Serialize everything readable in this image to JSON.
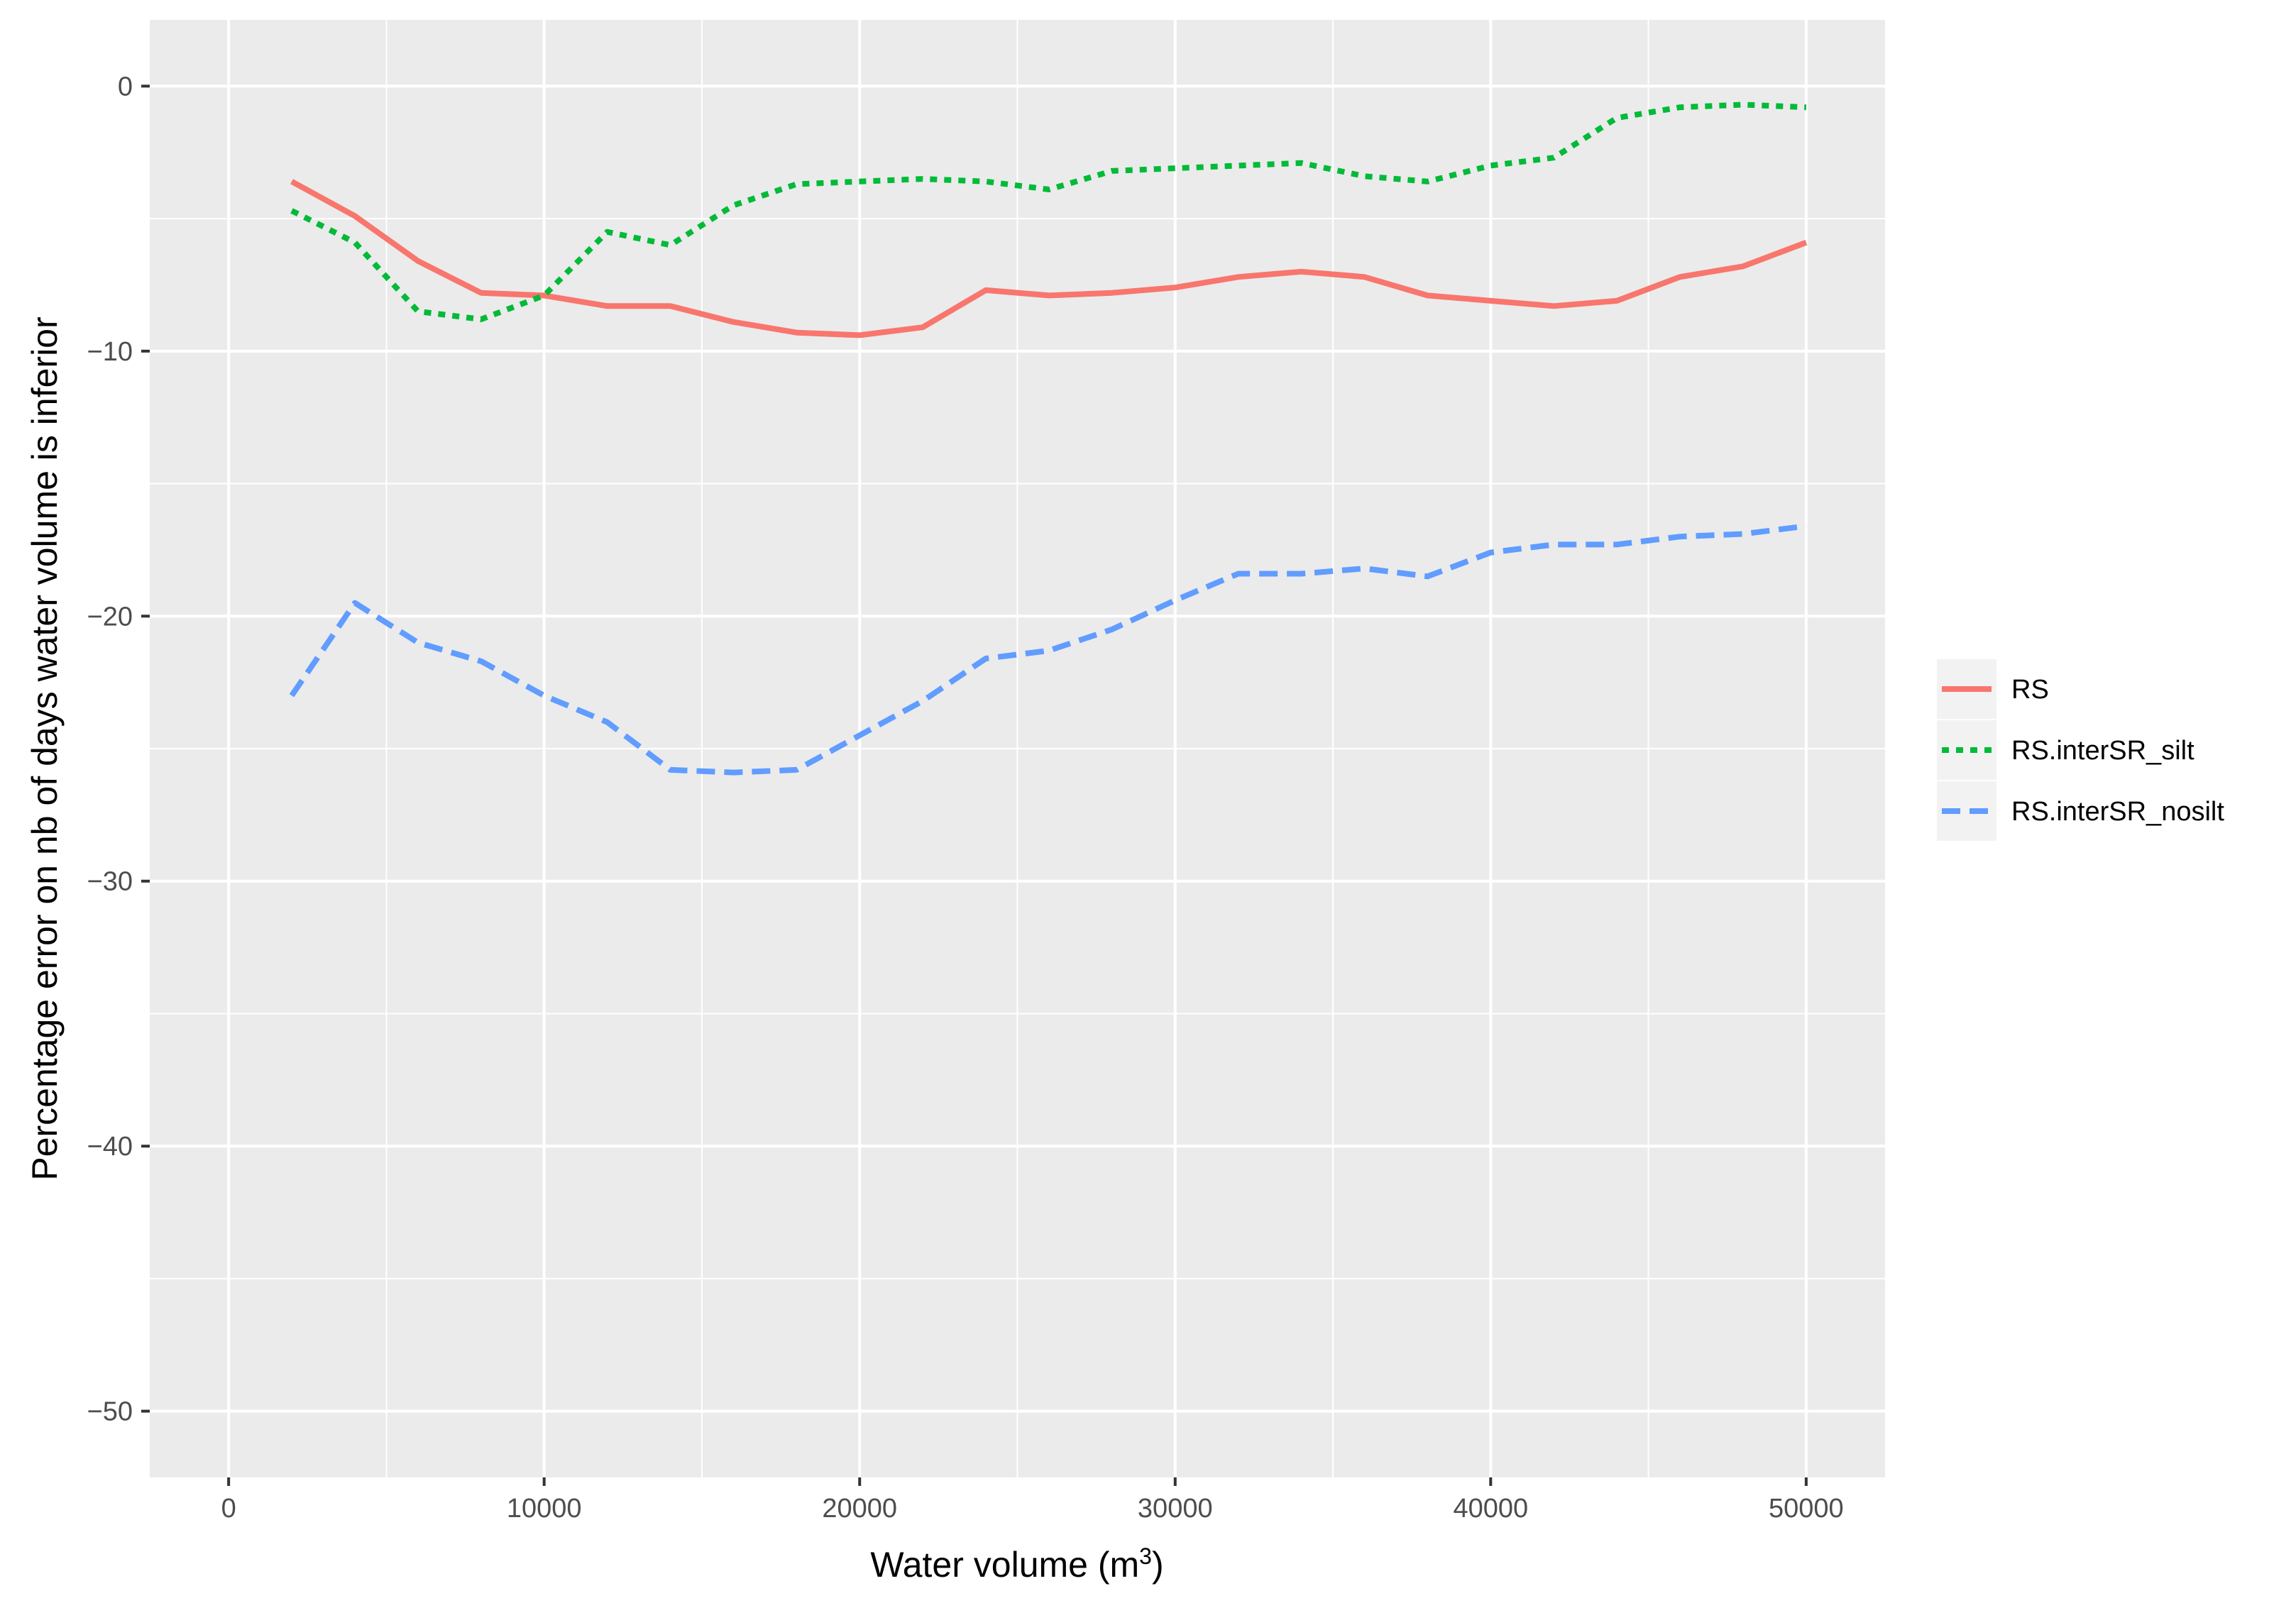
{
  "chart_data": {
    "type": "line",
    "title": "",
    "xlabel": "Water volume (m",
    "xlabel_sup": "3",
    "xlabel_suffix": ")",
    "ylabel": "Percentage error on nb of days water volume is inferior",
    "xlim": [
      -2500,
      52500
    ],
    "ylim": [
      -52.5,
      2.5
    ],
    "x_ticks": [
      0,
      10000,
      20000,
      30000,
      40000,
      50000
    ],
    "y_ticks": [
      0,
      -10,
      -20,
      -30,
      -40,
      -50
    ],
    "x_tick_labels": [
      "0",
      "10000",
      "20000",
      "30000",
      "40000",
      "50000"
    ],
    "y_tick_labels": [
      "0",
      "−10",
      "−20",
      "−30",
      "−40",
      "−50"
    ],
    "grid": true,
    "legend_position": "right",
    "x": [
      2000,
      4000,
      6000,
      8000,
      10000,
      12000,
      14000,
      16000,
      18000,
      20000,
      22000,
      24000,
      26000,
      28000,
      30000,
      32000,
      34000,
      36000,
      38000,
      40000,
      42000,
      44000,
      46000,
      48000,
      50000
    ],
    "series": [
      {
        "name": "RS",
        "color": "#F8766D",
        "linestyle": "solid",
        "values": [
          -3.6,
          -4.9,
          -6.6,
          -7.8,
          -7.9,
          -8.3,
          -8.3,
          -8.9,
          -9.3,
          -9.4,
          -9.1,
          -7.7,
          -7.9,
          -7.8,
          -7.6,
          -7.2,
          -7.0,
          -7.2,
          -7.9,
          -8.1,
          -8.3,
          -8.1,
          -7.2,
          -6.8,
          -5.9
        ]
      },
      {
        "name": "RS.interSR_silt",
        "color": "#00BA38",
        "linestyle": "dotted",
        "values": [
          -4.7,
          -5.9,
          -8.5,
          -8.8,
          -7.9,
          -5.5,
          -6.0,
          -4.5,
          -3.7,
          -3.6,
          -3.5,
          -3.6,
          -3.9,
          -3.2,
          -3.1,
          -3.0,
          -2.9,
          -3.4,
          -3.6,
          -3.0,
          -2.7,
          -1.2,
          -0.8,
          -0.7,
          -0.8
        ]
      },
      {
        "name": "RS.interSR_nosilt",
        "color": "#619CFF",
        "linestyle": "dashed",
        "values": [
          -23.0,
          -19.5,
          -21.0,
          -21.7,
          -23.0,
          -24.0,
          -25.8,
          -25.9,
          -25.8,
          -24.5,
          -23.2,
          -21.6,
          -21.3,
          -20.5,
          -19.4,
          -18.4,
          -18.4,
          -18.2,
          -18.5,
          -17.6,
          -17.3,
          -17.3,
          -17.0,
          -16.9,
          -16.6
        ]
      }
    ]
  }
}
